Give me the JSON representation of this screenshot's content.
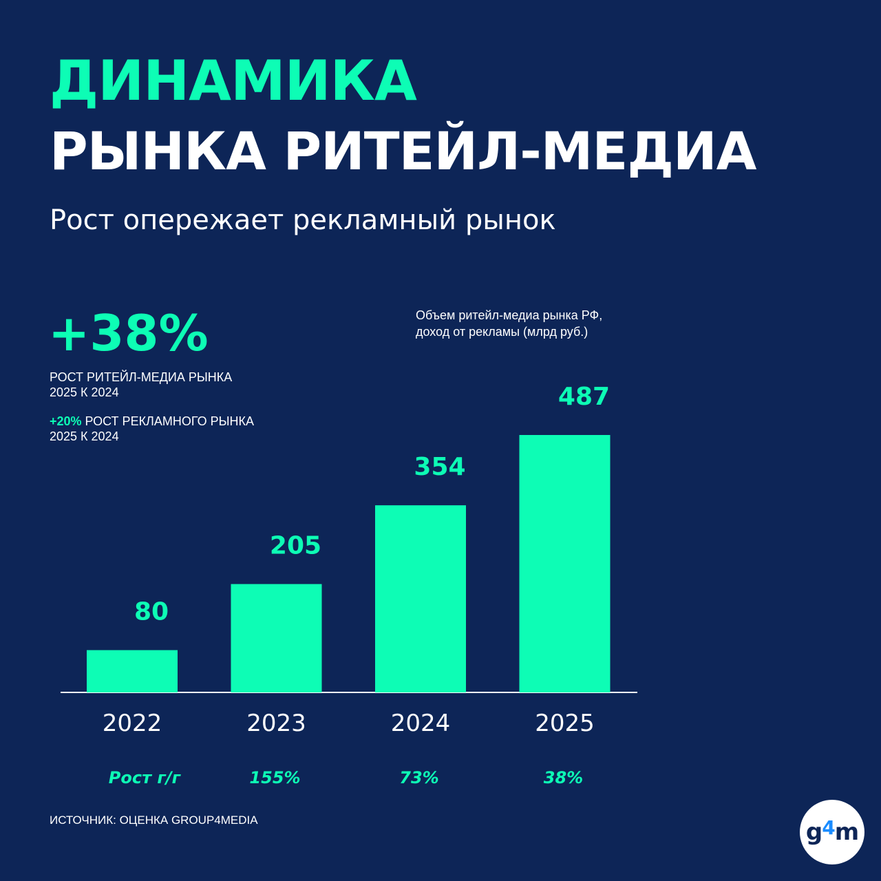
{
  "header": {
    "title_line1": "ДИНАМИКА",
    "title_line2": "РЫНКА РИТЕЙЛ-МЕДИА",
    "subtitle": "Рост опережает рекламный рынок"
  },
  "highlights": {
    "main_value": "+38%",
    "main_caption_line1": "РОСТ РИТЕЙЛ-МЕДИА РЫНКА",
    "main_caption_line2": "2025 К 2024",
    "secondary_value": "+20%",
    "secondary_caption_line1": " РОСТ РЕКЛАМНОГО РЫНКА",
    "secondary_caption_line2": "2025 К 2024"
  },
  "chart_caption": {
    "line1": "Объем ритейл-медиа рынка РФ,",
    "line2": "доход от рекламы (млрд руб.)"
  },
  "chart_data": {
    "type": "bar",
    "categories": [
      "2022",
      "2023",
      "2024",
      "2025"
    ],
    "values": [
      80,
      205,
      354,
      487
    ],
    "title": "Объем ритейл-медиа рынка РФ, доход от рекламы (млрд руб.)",
    "growth_label": "Рост г/г",
    "growth": [
      "",
      "155%",
      "73%",
      "38%"
    ],
    "bar_color": "#0dfdb5",
    "ylim": [
      0,
      500
    ],
    "grid": false
  },
  "footer": {
    "source": "ИСТОЧНИК: ОЦЕНКА GROUP4MEDIA",
    "logo_g": "g",
    "logo_4": "4",
    "logo_m": "m"
  },
  "colors": {
    "background": "#0d2557",
    "accent": "#0dfdb5",
    "text": "#ffffff",
    "logo_accent": "#1a8cff"
  }
}
